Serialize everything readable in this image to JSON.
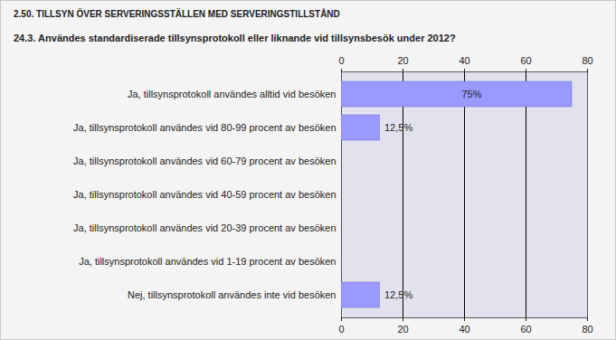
{
  "chart_data": {
    "type": "bar",
    "orientation": "horizontal",
    "title": "2.50. TILLSYN ÖVER SERVERINGSSTÄLLEN MED SERVERINGSTILLSTÅND",
    "subtitle": "24.3. Användes standardiserade tillsynsprotokoll eller liknande vid tillsynsbesök under 2012?",
    "categories": [
      "Ja, tillsynsprotokoll användes alltid vid besöken",
      "Ja, tillsynsprotokoll användes vid 80-99 procent av besöken",
      "Ja, tillsynsprotokoll användes vid 60-79 procent av besöken",
      "Ja, tillsynsprotokoll användes vid 40-59 procent av besöken",
      "Ja, tillsynsprotokoll användes vid 20-39 procent av besöken",
      "Ja, tillsynsprotokoll användes vid 1-19 procent av besöken",
      "Nej, tillsynsprotokoll användes inte vid besöken"
    ],
    "values": [
      75,
      12.5,
      0,
      0,
      0,
      0,
      12.5
    ],
    "value_labels": [
      "75%",
      "12,5%",
      null,
      null,
      null,
      null,
      "12,5%"
    ],
    "color": "#9999ff",
    "xlim": [
      0,
      80
    ],
    "xticks": [
      0,
      20,
      40,
      60,
      80
    ],
    "grid": true,
    "data_labels": true
  }
}
